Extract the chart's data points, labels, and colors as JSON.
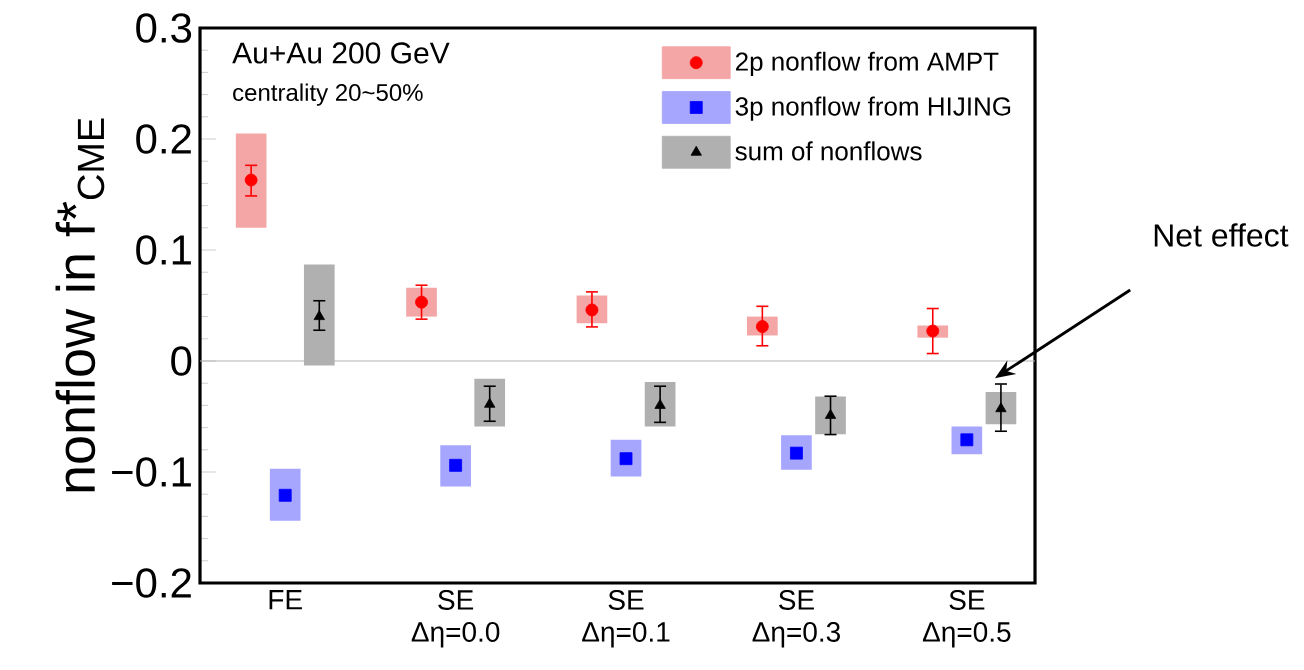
{
  "chart_data": {
    "type": "scatter",
    "ylabel": "nonflow in f*$_{CME}$",
    "categories": [
      "FE",
      "SE Δη=0.0",
      "SE Δη=0.1",
      "SE Δη=0.3",
      "SE Δη=0.5"
    ],
    "series": [
      {
        "type": "bar",
        "color": "#f4a6a6",
        "base": [
          0.12,
          0.04,
          0.034,
          0.023,
          0.021
        ],
        "values": [
          0.085,
          0.026,
          0.025,
          0.017,
          0.011
        ]
      },
      {
        "name": "2p nonflow from AMPT",
        "color": "#ff0000",
        "marker": "circle",
        "values": [
          0.163,
          0.053,
          0.046,
          0.031,
          0.027
        ],
        "errors": [
          [
            0.148,
            0.177
          ],
          [
            0.037,
            0.069
          ],
          [
            0.03,
            0.063
          ],
          [
            0.013,
            0.05
          ],
          [
            0.006,
            0.048
          ]
        ]
      },
      {
        "type": "bar",
        "color": "#a6a6ff",
        "base": [
          -0.144,
          -0.113,
          -0.104,
          -0.098,
          -0.084
        ],
        "values": [
          0.047,
          0.037,
          0.033,
          0.031,
          0.025
        ]
      },
      {
        "name": "3p nonflow from HIJING",
        "color": "#0000ff",
        "marker": "square",
        "values": [
          -0.121,
          -0.094,
          -0.088,
          -0.083,
          -0.071
        ]
      },
      {
        "type": "bar",
        "color": "#b0b0b0",
        "base": [
          -0.004,
          -0.059,
          -0.059,
          -0.066,
          -0.057
        ],
        "values": [
          0.091,
          0.043,
          0.04,
          0.034,
          0.029
        ]
      },
      {
        "name": "sum of nonflows",
        "color": "#000000",
        "marker": "triangle",
        "values": [
          0.04,
          -0.039,
          -0.04,
          -0.049,
          -0.043
        ],
        "errors": [
          [
            0.027,
            0.055
          ],
          [
            -0.055,
            -0.022
          ],
          [
            -0.056,
            -0.022
          ],
          [
            -0.067,
            -0.031
          ],
          [
            -0.064,
            -0.02
          ]
        ]
      }
    ],
    "ylim": [
      -0.2,
      0.3
    ],
    "yticks": [
      {
        "value": -0.2,
        "label": "−0.2"
      },
      {
        "value": -0.1,
        "label": "−0.1"
      },
      0,
      0.1,
      0.2,
      0.3
    ],
    "ref_lines": [
      {
        "axis": "y",
        "value": 0,
        "color": "#b4b4b4"
      }
    ],
    "legend": "top right",
    "annotations": [
      "Au+Au 200 GeV",
      "centrality 20~50%",
      "Net effect"
    ]
  }
}
